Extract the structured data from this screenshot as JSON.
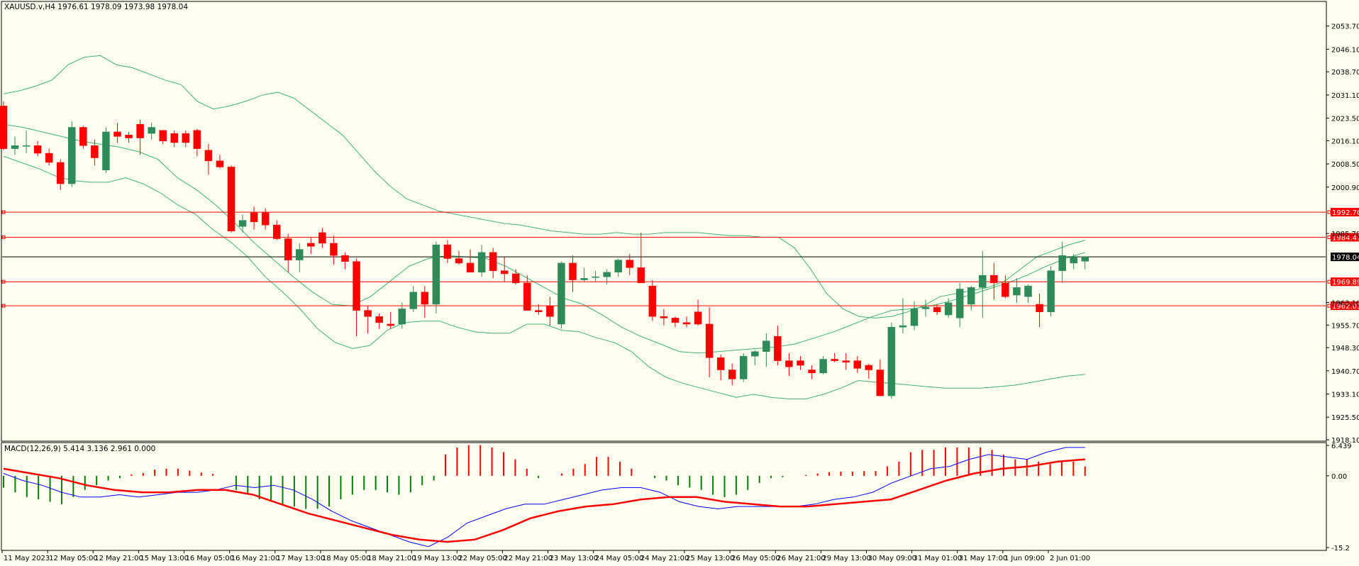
{
  "chart_data": [
    {
      "type": "candlestick",
      "title": "XAUUSD.v,H4  1976.61 1978.09 1973.98 1978.04",
      "ylim": [
        1918.1,
        2061.3
      ],
      "y_ticks": [
        "2053.70",
        "2046.10",
        "2038.70",
        "2031.10",
        "2023.50",
        "2016.10",
        "2008.50",
        "2000.90",
        "1985.70",
        "1963.10",
        "1955.70",
        "1948.30",
        "1940.70",
        "1933.10",
        "1925.50",
        "1918.10"
      ],
      "current_price": "1978.04",
      "price_lines": [
        {
          "value": 1992.7,
          "label": "1992.70"
        },
        {
          "value": 1984.47,
          "label": "1984.47"
        },
        {
          "value": 1969.89,
          "label": "1969.89"
        },
        {
          "value": 1962.01,
          "label": "1962.01"
        }
      ],
      "candles": [
        [
          2027.5,
          2029.0,
          2013.0,
          2013.5
        ],
        [
          2013.5,
          2017.5,
          2011.5,
          2014.5
        ],
        [
          2014.5,
          2019.5,
          2012.0,
          2014.5
        ],
        [
          2014.5,
          2016.0,
          2011.0,
          2012.0
        ],
        [
          2012.0,
          2013.5,
          2008.0,
          2009.0
        ],
        [
          2009.0,
          2010.0,
          2000.0,
          2002.0
        ],
        [
          2002.0,
          2022.5,
          2001.0,
          2020.5
        ],
        [
          2020.5,
          2021.0,
          2013.5,
          2014.5
        ],
        [
          2014.5,
          2016.5,
          2008.0,
          2010.5
        ],
        [
          2006.5,
          2020.5,
          2005.5,
          2019.0
        ],
        [
          2019.0,
          2022.0,
          2015.5,
          2017.5
        ],
        [
          2018.0,
          2019.0,
          2015.5,
          2017.0
        ],
        [
          2021.5,
          2023.0,
          2011.5,
          2017.0
        ],
        [
          2018.5,
          2022.0,
          2016.5,
          2020.5
        ],
        [
          2019.5,
          2019.5,
          2015.0,
          2016.0
        ],
        [
          2018.5,
          2019.5,
          2014.0,
          2015.5
        ],
        [
          2018.5,
          2019.5,
          2014.0,
          2015.5
        ],
        [
          2019.5,
          2020.0,
          2011.0,
          2013.5
        ],
        [
          2013.0,
          2015.0,
          2005.0,
          2009.5
        ],
        [
          2009.5,
          2011.5,
          2007.0,
          2007.5
        ],
        [
          2007.5,
          2008.0,
          1986.0,
          1986.5
        ],
        [
          1988.0,
          1992.0,
          1986.0,
          1990.0
        ],
        [
          1992.5,
          1994.5,
          1987.0,
          1989.5
        ],
        [
          1992.5,
          1994.0,
          1987.0,
          1988.5
        ],
        [
          1988.5,
          1990.0,
          1983.5,
          1984.0
        ],
        [
          1984.0,
          1985.5,
          1973.0,
          1977.0
        ],
        [
          1977.0,
          1982.5,
          1973.0,
          1980.5
        ],
        [
          1982.5,
          1984.5,
          1979.0,
          1981.5
        ],
        [
          1986.0,
          1987.5,
          1981.0,
          1982.5
        ],
        [
          1982.5,
          1985.0,
          1975.5,
          1978.5
        ],
        [
          1978.5,
          1979.5,
          1974.0,
          1976.5
        ],
        [
          1976.5,
          1977.5,
          1952.0,
          1960.5
        ],
        [
          1960.5,
          1962.0,
          1953.0,
          1958.5
        ],
        [
          1958.5,
          1959.5,
          1954.5,
          1956.5
        ],
        [
          1956.0,
          1960.0,
          1954.5,
          1955.5
        ],
        [
          1956.0,
          1963.0,
          1954.5,
          1961.0
        ],
        [
          1961.0,
          1968.5,
          1960.0,
          1966.5
        ],
        [
          1966.5,
          1968.5,
          1958.0,
          1962.5
        ],
        [
          1962.5,
          1983.0,
          1959.5,
          1982.0
        ],
        [
          1982.0,
          1983.5,
          1976.0,
          1977.5
        ],
        [
          1977.5,
          1980.0,
          1975.5,
          1976.0
        ],
        [
          1976.0,
          1980.5,
          1973.0,
          1973.0
        ],
        [
          1973.0,
          1982.0,
          1971.5,
          1979.5
        ],
        [
          1979.5,
          1981.0,
          1971.0,
          1973.5
        ],
        [
          1973.5,
          1978.0,
          1970.0,
          1972.5
        ],
        [
          1972.5,
          1974.0,
          1969.0,
          1969.5
        ],
        [
          1969.5,
          1972.0,
          1960.5,
          1960.5
        ],
        [
          1960.5,
          1962.5,
          1959.0,
          1960.0
        ],
        [
          1962.0,
          1965.0,
          1955.5,
          1958.5
        ],
        [
          1956.0,
          1976.5,
          1954.5,
          1976.0
        ],
        [
          1976.0,
          1978.5,
          1966.5,
          1970.5
        ],
        [
          1970.5,
          1974.5,
          1970.0,
          1971.0
        ],
        [
          1971.5,
          1973.5,
          1970.0,
          1971.5
        ],
        [
          1971.5,
          1974.0,
          1969.0,
          1973.0
        ],
        [
          1973.0,
          1977.5,
          1971.5,
          1977.0
        ],
        [
          1977.0,
          1979.0,
          1972.0,
          1974.5
        ],
        [
          1974.5,
          1986.0,
          1970.5,
          1969.5
        ],
        [
          1968.5,
          1970.5,
          1957.0,
          1958.5
        ],
        [
          1958.5,
          1961.0,
          1955.5,
          1958.0
        ],
        [
          1958.0,
          1958.5,
          1955.0,
          1956.5
        ],
        [
          1956.5,
          1958.5,
          1955.0,
          1956.0
        ],
        [
          1960.0,
          1964.0,
          1955.5,
          1956.0
        ],
        [
          1956.0,
          1961.5,
          1938.5,
          1945.0
        ],
        [
          1945.0,
          1946.0,
          1937.5,
          1941.0
        ],
        [
          1941.0,
          1943.0,
          1936.0,
          1938.0
        ],
        [
          1938.0,
          1946.5,
          1937.0,
          1945.5
        ],
        [
          1945.5,
          1947.5,
          1942.5,
          1947.0
        ],
        [
          1947.0,
          1953.0,
          1942.0,
          1950.5
        ],
        [
          1952.0,
          1955.5,
          1942.5,
          1944.0
        ],
        [
          1944.0,
          1946.5,
          1939.0,
          1942.0
        ],
        [
          1944.0,
          1945.5,
          1941.0,
          1942.5
        ],
        [
          1941.0,
          1942.5,
          1938.0,
          1940.0
        ],
        [
          1940.0,
          1945.5,
          1939.5,
          1944.5
        ],
        [
          1944.5,
          1946.5,
          1943.5,
          1944.0
        ],
        [
          1944.0,
          1946.5,
          1941.0,
          1943.5
        ],
        [
          1944.0,
          1945.5,
          1940.0,
          1941.5
        ],
        [
          1942.5,
          1943.0,
          1938.0,
          1941.0
        ],
        [
          1941.0,
          1944.5,
          1933.5,
          1932.5
        ],
        [
          1932.5,
          1956.5,
          1931.5,
          1955.0
        ],
        [
          1955.0,
          1964.5,
          1953.0,
          1955.5
        ],
        [
          1955.5,
          1963.5,
          1954.0,
          1961.0
        ],
        [
          1961.0,
          1964.0,
          1958.5,
          1961.5
        ],
        [
          1961.5,
          1962.5,
          1959.0,
          1960.0
        ],
        [
          1959.0,
          1964.5,
          1958.0,
          1963.0
        ],
        [
          1958.0,
          1969.5,
          1955.0,
          1967.5
        ],
        [
          1962.5,
          1968.5,
          1960.5,
          1968.0
        ],
        [
          1968.0,
          1980.0,
          1958.0,
          1972.0
        ],
        [
          1972.0,
          1976.0,
          1964.0,
          1969.5
        ],
        [
          1969.5,
          1972.0,
          1964.5,
          1965.0
        ],
        [
          1965.5,
          1971.0,
          1963.0,
          1968.0
        ],
        [
          1965.0,
          1969.0,
          1963.0,
          1968.5
        ],
        [
          1962.5,
          1966.0,
          1955.0,
          1960.0
        ],
        [
          1960.0,
          1975.0,
          1958.5,
          1973.5
        ],
        [
          1973.5,
          1983.0,
          1969.5,
          1978.5
        ],
        [
          1976.0,
          1979.0,
          1974.0,
          1978.0
        ],
        [
          1976.61,
          1978.09,
          1973.98,
          1978.04
        ]
      ],
      "bollinger_upper": [
        2031.5,
        2032.5,
        2034.0,
        2036.0,
        2041.0,
        2043.5,
        2044.0,
        2041.0,
        2040.0,
        2038.0,
        2036.0,
        2034.5,
        2029.0,
        2026.5,
        2027.5,
        2029.0,
        2031.0,
        2032.0,
        2030.0,
        2026.0,
        2022.0,
        2018.0,
        2012.0,
        2006.0,
        2001.0,
        1997.0,
        1995.0,
        1993.0,
        1992.0,
        1991.0,
        1990.0,
        1989.0,
        1988.5,
        1987.5,
        1986.5,
        1986.0,
        1985.5,
        1985.5,
        1986.0,
        1985.5,
        1985.5,
        1986.0,
        1986.0,
        1986.0,
        1985.5,
        1985.0,
        1985.0,
        1984.5,
        1984.5,
        1981.0,
        1974.0,
        1966.0,
        1961.0,
        1958.5,
        1958.0,
        1958.5,
        1960.0,
        1962.0,
        1965.0,
        1966.0,
        1967.0,
        1968.0,
        1970.0,
        1974.0,
        1978.0,
        1980.0,
        1982.0,
        1983.5
      ],
      "bollinger_middle": [
        2021.5,
        2020.5,
        2019.0,
        2017.5,
        2016.0,
        2015.0,
        2014.0,
        2012.5,
        2010.0,
        2004.0,
        2000.0,
        1995.0,
        1989.0,
        1982.5,
        1977.0,
        1971.5,
        1966.5,
        1962.5,
        1962.0,
        1965.0,
        1970.0,
        1975.0,
        1977.5,
        1978.5,
        1978.0,
        1977.5,
        1975.0,
        1971.5,
        1968.0,
        1964.5,
        1962.5,
        1959.0,
        1955.0,
        1952.0,
        1949.5,
        1947.0,
        1946.5,
        1947.0,
        1947.5,
        1948.0,
        1948.5,
        1949.5,
        1951.5,
        1953.5,
        1956.0,
        1958.5,
        1960.5,
        1961.0,
        1962.0,
        1963.5,
        1965.5,
        1967.5,
        1969.5,
        1972.0,
        1975.0,
        1977.5,
        1979.5
      ],
      "bollinger_lower": [
        2011.0,
        2009.0,
        2007.0,
        2004.5,
        2003.0,
        2002.5,
        2002.5,
        2004.0,
        2002.0,
        1999.0,
        1995.0,
        1992.0,
        1987.0,
        1983.0,
        1978.0,
        1971.5,
        1966.5,
        1961.0,
        1954.5,
        1950.0,
        1948.0,
        1949.0,
        1954.0,
        1956.5,
        1957.0,
        1957.0,
        1955.0,
        1953.5,
        1953.0,
        1953.0,
        1956.0,
        1956.0,
        1954.0,
        1953.5,
        1951.5,
        1950.0,
        1947.0,
        1942.0,
        1938.5,
        1936.5,
        1935.0,
        1933.5,
        1932.0,
        1933.0,
        1932.0,
        1931.5,
        1931.5,
        1933.0,
        1935.0,
        1937.5,
        1937.0,
        1936.5,
        1936.0,
        1935.5,
        1935.0,
        1935.0,
        1935.0,
        1935.5,
        1936.0,
        1937.0,
        1938.0,
        1939.0,
        1939.5
      ]
    },
    {
      "type": "line",
      "title": "MACD(12,26,9) 5.414 3.136 2.961 0.000",
      "ylim": [
        -15.2,
        6.439
      ],
      "y_ticks": [
        "6.439",
        "0.00",
        "-15.2"
      ],
      "histogram": [
        -2.5,
        -3.5,
        -4.5,
        -5.0,
        -5.5,
        -6.0,
        -4.5,
        -3.0,
        -2.0,
        -1.0,
        -0.5,
        0.3,
        0.6,
        1.3,
        1.5,
        1.5,
        1.1,
        0.7,
        0.4,
        0.0,
        -3.0,
        -4.0,
        -5.0,
        -5.5,
        -6.0,
        -6.5,
        -7.0,
        -7.0,
        -6.5,
        -5.0,
        -4.0,
        -3.0,
        -3.0,
        -3.5,
        -4.0,
        -3.5,
        -2.0,
        -1.0,
        4.5,
        6.0,
        6.5,
        6.5,
        6.0,
        5.0,
        3.5,
        1.5,
        -0.5,
        0.0,
        0.5,
        1.5,
        2.5,
        4.0,
        4.0,
        3.0,
        1.5,
        0.0,
        -0.5,
        -1.0,
        -2.0,
        -2.5,
        -3.0,
        -4.0,
        -4.5,
        -4.0,
        -3.0,
        -1.5,
        -0.5,
        -0.3,
        0.0,
        0.2,
        0.5,
        0.8,
        0.9,
        0.9,
        1.0,
        1.0,
        2.0,
        3.0,
        5.0,
        5.5,
        5.5,
        6.0,
        6.0,
        6.0,
        6.0,
        5.5,
        4.5,
        3.5,
        3.5,
        3.0,
        2.5,
        3.0,
        3.0,
        2.0
      ],
      "macd_line": [
        0.5,
        -1.0,
        -2.0,
        -3.5,
        -4.5,
        -4.5,
        -4.0,
        -4.5,
        -4.0,
        -3.5,
        -3.5,
        -3.0,
        -2.0,
        -2.5,
        -2.0,
        -3.0,
        -5.0,
        -7.5,
        -9.5,
        -11.0,
        -12.5,
        -14.0,
        -15.0,
        -13.0,
        -10.0,
        -8.5,
        -7.0,
        -6.0,
        -6.0,
        -5.0,
        -4.0,
        -3.0,
        -2.5,
        -2.5,
        -3.5,
        -5.5,
        -6.5,
        -7.0,
        -6.5,
        -6.5,
        -6.5,
        -6.5,
        -6.0,
        -5.0,
        -4.5,
        -3.5,
        -1.5,
        0.0,
        1.5,
        2.0,
        3.5,
        4.5,
        4.0,
        3.5,
        5.0,
        6.0,
        6.0
      ],
      "signal_line": [
        1.5,
        0.5,
        -0.5,
        -2.0,
        -3.0,
        -3.5,
        -3.5,
        -3.0,
        -3.0,
        -4.0,
        -6.0,
        -8.0,
        -9.5,
        -11.0,
        -12.5,
        -13.5,
        -14.0,
        -13.5,
        -11.5,
        -9.0,
        -7.5,
        -6.5,
        -6.0,
        -5.0,
        -4.5,
        -4.5,
        -5.5,
        -6.0,
        -6.5,
        -6.5,
        -6.0,
        -5.5,
        -5.0,
        -3.0,
        -1.0,
        0.5,
        1.5,
        2.0,
        3.0,
        3.5
      ]
    }
  ],
  "x_axis": {
    "labels": [
      "11 May 2023",
      "12 May 05:00",
      "12 May 21:00",
      "15 May 13:00",
      "16 May 05:00",
      "16 May 21:00",
      "17 May 13:00",
      "18 May 05:00",
      "18 May 21:00",
      "19 May 13:00",
      "22 May 05:00",
      "22 May 21:00",
      "23 May 13:00",
      "24 May 05:00",
      "24 May 21:00",
      "25 May 13:00",
      "26 May 05:00",
      "26 May 21:00",
      "29 May 13:00",
      "30 May 09:00",
      "31 May 01:00",
      "31 May 17:00",
      "1 Jun 09:00",
      "2 Jun 01:00"
    ]
  },
  "colors": {
    "background": "#fffff0",
    "bull": "#2e8b57",
    "bear": "#ff0000",
    "band": "#3cb371",
    "hline": "#ff0000",
    "current": "#000000",
    "macd_line": "#0000ff",
    "signal_line": "#ff0000",
    "hist_pos": "#ff0000",
    "hist_neg": "#008000"
  }
}
